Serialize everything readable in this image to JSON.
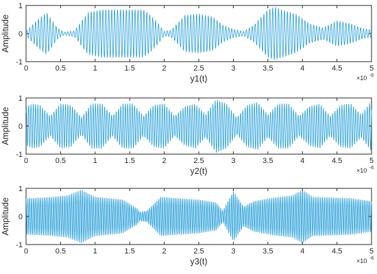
{
  "chart_data": [
    {
      "type": "line",
      "title": "",
      "xlabel": "y1(t)",
      "ylabel": "Amplitude",
      "x_scale_label": "×10^-6",
      "x_exponent_base": "×10",
      "x_exponent": "-6",
      "xlim": [
        0,
        5
      ],
      "ylim": [
        -1,
        1
      ],
      "xticks": [
        0,
        0.5,
        1,
        1.5,
        2,
        2.5,
        3,
        3.5,
        4,
        4.5,
        5
      ],
      "xtick_labels": [
        "0",
        "0.5",
        "1",
        "1.5",
        "2",
        "2.5",
        "3",
        "3.5",
        "4",
        "4.5",
        "5"
      ],
      "yticks": [
        -1,
        0,
        1
      ],
      "ytick_labels": [
        "-1",
        "0",
        "1"
      ],
      "grid": false,
      "color": "#1f9bd7",
      "series": [
        {
          "x": [
            0,
            0.15,
            0.3,
            0.45,
            0.55,
            0.7,
            0.9,
            1.1,
            1.3,
            1.5,
            1.7,
            1.8,
            1.9,
            2.0,
            2.1,
            2.3,
            2.5,
            2.7,
            2.85,
            3.0,
            3.15,
            3.3,
            3.5,
            3.6,
            3.7,
            3.9,
            4.1,
            4.3,
            4.5,
            4.7,
            4.85,
            5.0
          ],
          "envelope": [
            0.08,
            0.45,
            0.75,
            0.2,
            0.05,
            0.1,
            0.75,
            0.85,
            0.85,
            0.85,
            0.85,
            0.65,
            0.4,
            0.08,
            0.12,
            0.65,
            0.7,
            0.6,
            0.3,
            0.15,
            0.08,
            0.3,
            0.85,
            0.95,
            0.85,
            0.7,
            0.35,
            0.2,
            0.45,
            0.35,
            0.2,
            0.12
          ],
          "carrier_cycles": 118
        }
      ]
    },
    {
      "type": "line",
      "title": "",
      "xlabel": "y2(t)",
      "ylabel": "Amplitude",
      "x_scale_label": "×10^-6",
      "x_exponent_base": "×10",
      "x_exponent": "-6",
      "xlim": [
        0,
        5
      ],
      "ylim": [
        -1,
        1
      ],
      "xticks": [
        0,
        0.5,
        1,
        1.5,
        2,
        2.5,
        3,
        3.5,
        4,
        4.5,
        5
      ],
      "xtick_labels": [
        "0",
        "0.5",
        "1",
        "1.5",
        "2",
        "2.5",
        "3",
        "3.5",
        "4",
        "4.5",
        "5"
      ],
      "yticks": [
        -1,
        0,
        1
      ],
      "ytick_labels": [
        "-1",
        "0",
        "1"
      ],
      "grid": false,
      "color": "#1f9bd7",
      "series": [
        {
          "x": [
            0,
            0.1,
            0.2,
            0.35,
            0.5,
            0.65,
            0.8,
            0.95,
            1.1,
            1.25,
            1.4,
            1.55,
            1.7,
            1.85,
            2.0,
            2.15,
            2.3,
            2.45,
            2.6,
            2.75,
            2.9,
            3.05,
            3.2,
            3.35,
            3.5,
            3.65,
            3.8,
            3.95,
            4.1,
            4.25,
            4.4,
            4.55,
            4.7,
            4.85,
            5.0
          ],
          "envelope": [
            0.7,
            0.8,
            0.75,
            0.35,
            0.8,
            0.75,
            0.3,
            0.8,
            0.8,
            0.35,
            0.8,
            0.8,
            0.35,
            0.75,
            0.8,
            0.35,
            0.7,
            0.8,
            0.4,
            0.95,
            0.8,
            0.3,
            0.75,
            0.85,
            0.4,
            0.8,
            0.8,
            0.35,
            0.7,
            0.8,
            0.35,
            0.75,
            0.8,
            0.4,
            0.9
          ],
          "carrier_cycles": 150
        }
      ]
    },
    {
      "type": "line",
      "title": "",
      "xlabel": "y3(t)",
      "ylabel": "Amplitude",
      "x_scale_label": "×10^-6",
      "x_exponent_base": "×10",
      "x_exponent": "-6",
      "xlim": [
        0,
        5
      ],
      "ylim": [
        -1,
        1
      ],
      "xticks": [
        0,
        0.5,
        1,
        1.5,
        2,
        2.5,
        3,
        3.5,
        4,
        4.5,
        5
      ],
      "xtick_labels": [
        "0",
        "0.5",
        "1",
        "1.5",
        "2",
        "2.5",
        "3",
        "3.5",
        "4",
        "4.5",
        "5"
      ],
      "yticks": [
        -1,
        0,
        1
      ],
      "ytick_labels": [
        "-1",
        "0",
        "1"
      ],
      "grid": false,
      "color": "#1f9bd7",
      "series": [
        {
          "x": [
            0,
            0.3,
            0.6,
            0.8,
            1.0,
            1.2,
            1.4,
            1.6,
            1.65,
            1.75,
            1.95,
            2.2,
            2.5,
            2.75,
            2.85,
            3.0,
            3.15,
            3.3,
            3.6,
            3.85,
            4.0,
            4.15,
            4.4,
            4.7,
            5.0
          ],
          "envelope": [
            0.65,
            0.68,
            0.75,
            0.95,
            0.7,
            0.65,
            0.6,
            0.3,
            0.15,
            0.2,
            0.7,
            0.65,
            0.6,
            0.5,
            0.2,
            0.9,
            0.35,
            0.55,
            0.68,
            0.75,
            0.95,
            0.7,
            0.68,
            0.65,
            0.55
          ],
          "carrier_cycles": 190
        }
      ]
    }
  ]
}
